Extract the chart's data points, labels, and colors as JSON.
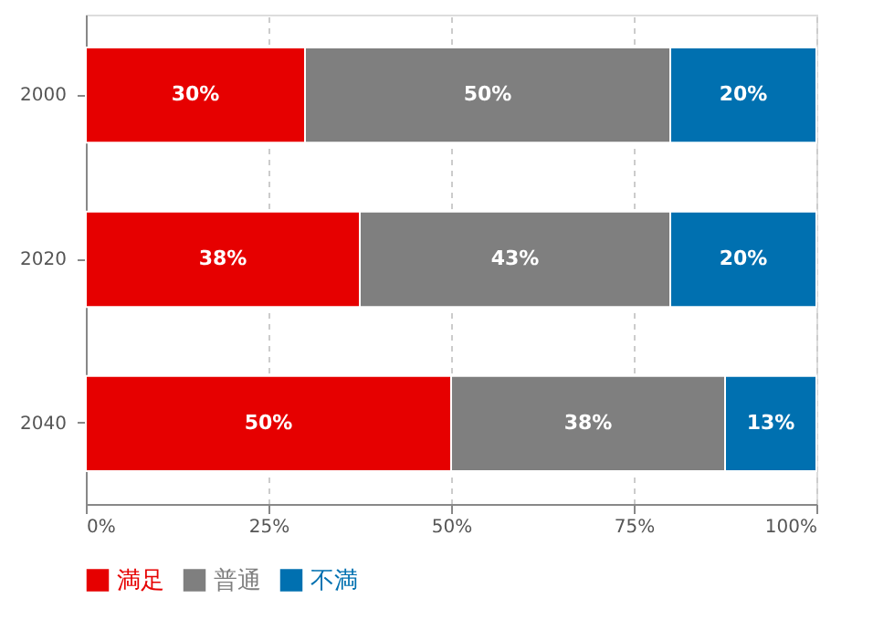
{
  "chart_data": {
    "type": "bar",
    "orientation": "horizontal",
    "stacked": true,
    "categories": [
      "2000",
      "2020",
      "2040"
    ],
    "series": [
      {
        "name": "満足",
        "color": "#e60000",
        "values": [
          30,
          37.5,
          50
        ],
        "value_labels": [
          "30%",
          "38%",
          "50%"
        ]
      },
      {
        "name": "普通",
        "color": "#7f7f7f",
        "values": [
          50,
          42.5,
          37.5
        ],
        "value_labels": [
          "50%",
          "43%",
          "38%"
        ]
      },
      {
        "name": "不満",
        "color": "#0070b0",
        "values": [
          20,
          20,
          12.5
        ],
        "value_labels": [
          "20%",
          "20%",
          "13%"
        ]
      }
    ],
    "xlim": [
      0,
      100
    ],
    "xticks": [
      {
        "value": 0,
        "label": "0%"
      },
      {
        "value": 25,
        "label": "25%"
      },
      {
        "value": 50,
        "label": "50%"
      },
      {
        "value": 75,
        "label": "75%"
      },
      {
        "value": 100,
        "label": "100%"
      }
    ],
    "grid": "x",
    "legend": "bottom"
  }
}
